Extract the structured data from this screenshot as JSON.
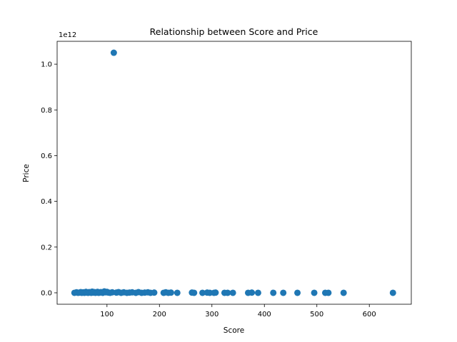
{
  "chart_data": {
    "type": "scatter",
    "title": "Relationship between Score and Price",
    "xlabel": "Score",
    "ylabel": "Price",
    "y_offset_label": "1e12",
    "xlim": [
      5,
      680
    ],
    "ylim": [
      -0.05,
      1.1
    ],
    "x_ticks": [
      100,
      200,
      300,
      400,
      500,
      600
    ],
    "y_ticks": [
      0.0,
      0.2,
      0.4,
      0.6,
      0.8,
      1.0
    ],
    "y_tick_labels": [
      "0.0",
      "0.2",
      "0.4",
      "0.6",
      "0.8",
      "1.0"
    ],
    "grid": false,
    "marker_color": "#1f77b4",
    "points": {
      "x": [
        38,
        42,
        45,
        48,
        50,
        52,
        55,
        57,
        60,
        62,
        64,
        66,
        68,
        70,
        72,
        74,
        76,
        78,
        80,
        82,
        84,
        86,
        88,
        90,
        92,
        95,
        98,
        100,
        103,
        106,
        110,
        113,
        118,
        122,
        127,
        132,
        138,
        143,
        148,
        155,
        160,
        166,
        172,
        178,
        183,
        190,
        208,
        212,
        217,
        222,
        234,
        262,
        266,
        282,
        291,
        296,
        304,
        307,
        324,
        330,
        340,
        369,
        376,
        388,
        417,
        436,
        463,
        495,
        516,
        522,
        551,
        645
      ],
      "y": [
        0,
        0.002,
        0,
        0.001,
        0.003,
        0,
        0.002,
        0,
        0.004,
        0.001,
        0,
        0.003,
        0.002,
        0,
        0.005,
        0.001,
        0.003,
        0,
        0.002,
        0.004,
        0,
        0.001,
        0.003,
        0.002,
        0,
        0.006,
        0.002,
        0.004,
        0.001,
        0,
        0.002,
        1.05,
        0.001,
        0.003,
        0,
        0.002,
        0,
        0.001,
        0.002,
        0,
        0.003,
        0,
        0.001,
        0.002,
        0,
        0.001,
        0,
        0.002,
        0,
        0.001,
        0,
        0.001,
        0,
        0,
        0.001,
        0,
        0,
        0.001,
        0,
        0,
        0,
        0,
        0.001,
        0,
        0,
        0,
        0,
        0,
        0,
        0,
        0,
        0
      ]
    }
  }
}
